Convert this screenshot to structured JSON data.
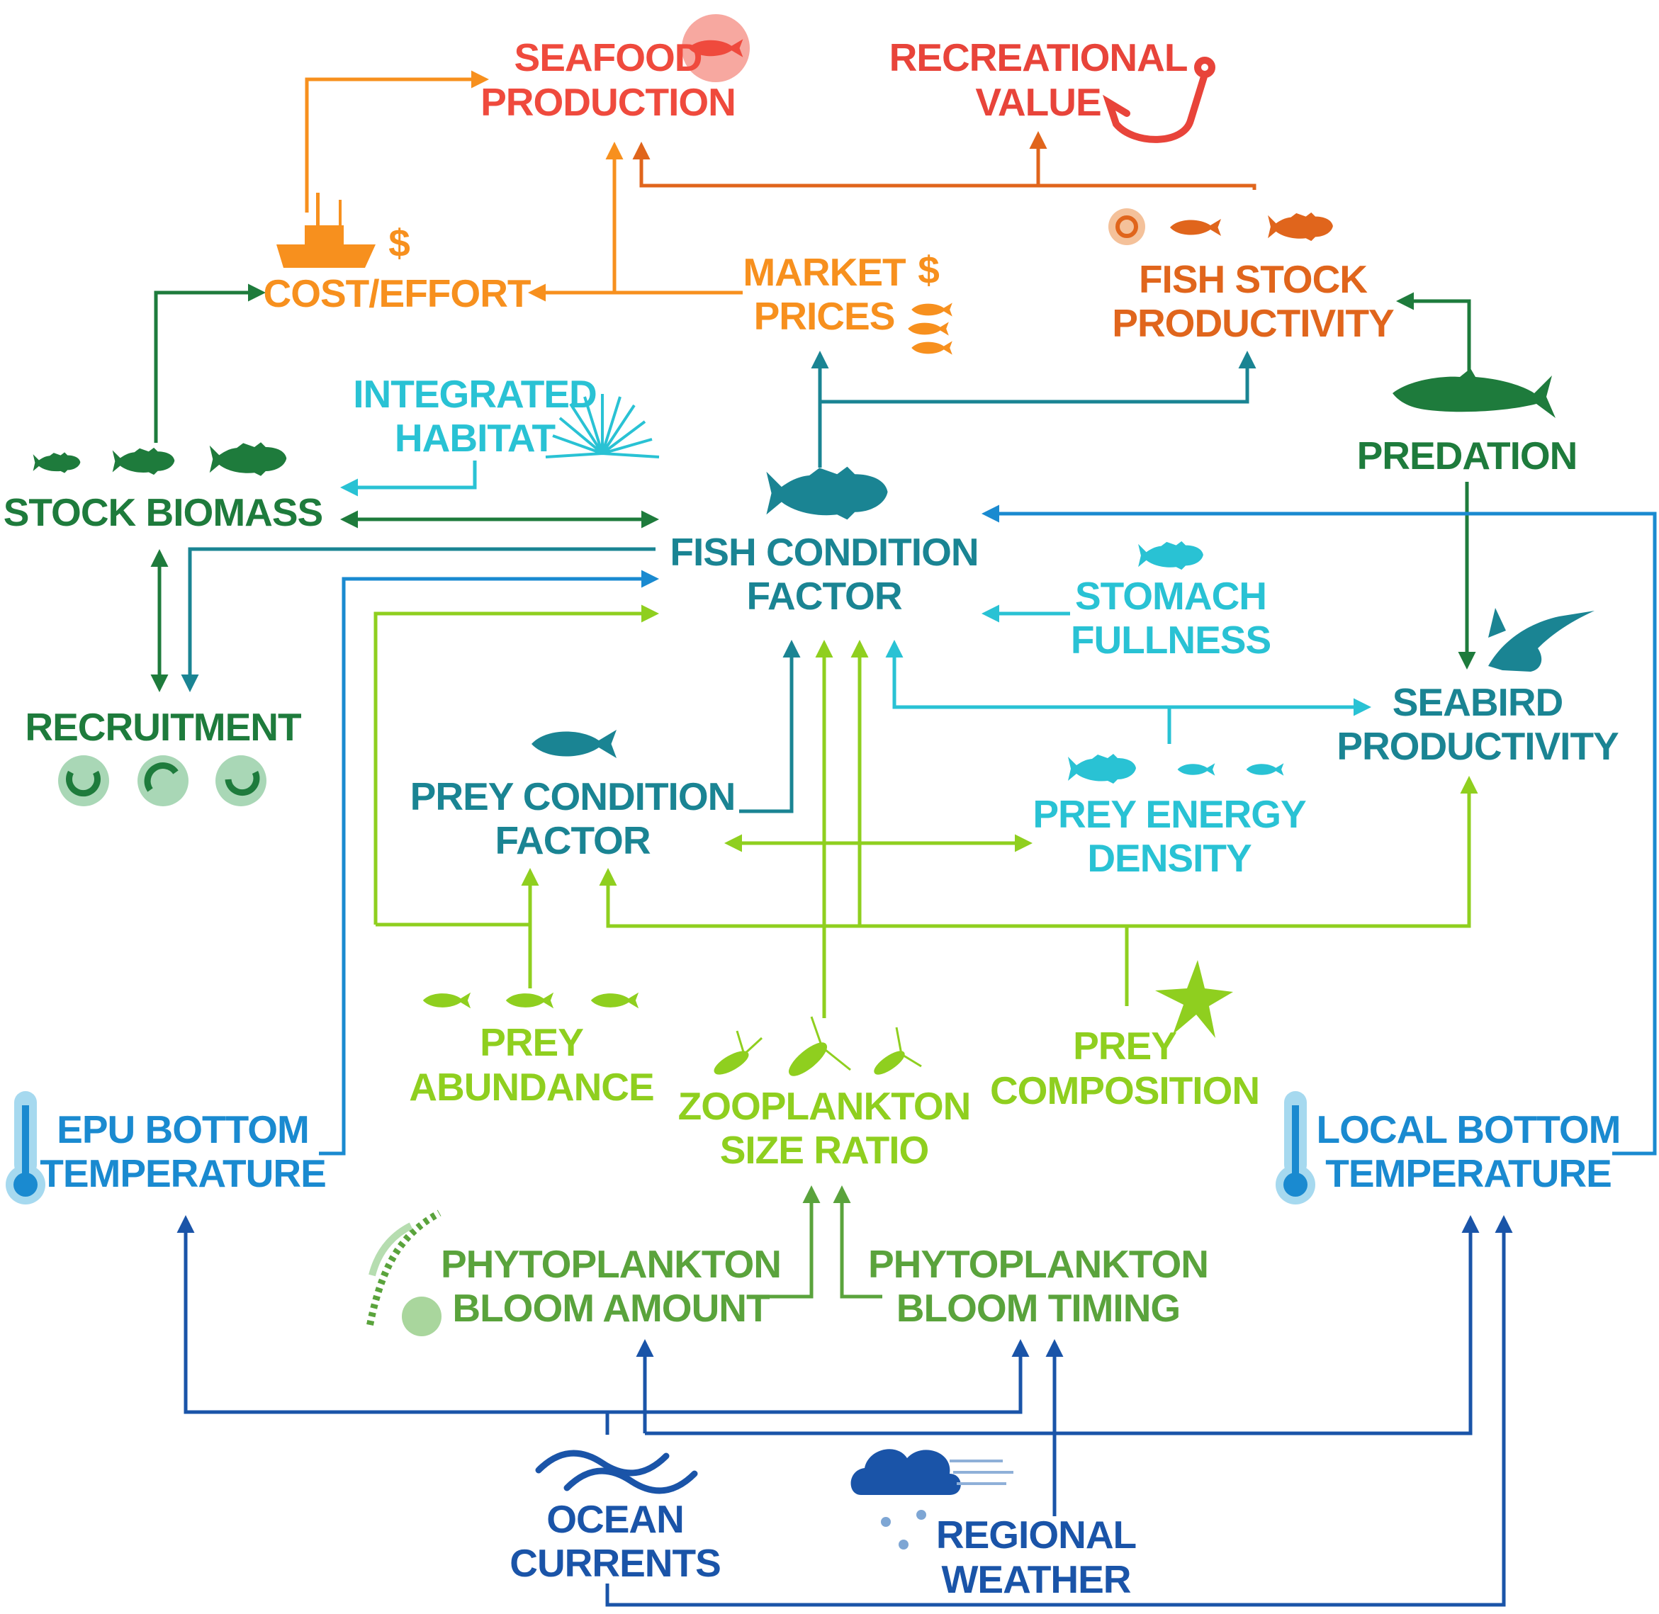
{
  "colors": {
    "socio_red": "#ef4a3d",
    "socio_orange": "#f7901e",
    "fish_orange": "#e0651c",
    "dark_green": "#1e7b3c",
    "teal": "#1a8493",
    "cyan": "#29c2d4",
    "light_green": "#8fcf1f",
    "mid_green": "#5aa33c",
    "blue": "#1a8ad0",
    "navy": "#1a54a8",
    "recreational_red": "#e8443a"
  },
  "nodes": {
    "seafood_production": {
      "line1": "SEAFOOD",
      "line2": "PRODUCTION",
      "icon": "fish-plate-icon"
    },
    "recreational_value": {
      "line1": "RECREATIONAL",
      "line2": "VALUE",
      "icon": "fishhook-icon"
    },
    "cost_effort": {
      "line1": "COST/EFFORT",
      "icon": "fishing-boat-icon"
    },
    "market_prices": {
      "line1": "MARKET",
      "line2": "PRICES",
      "icon": "fish-stack-icon"
    },
    "fish_stock_productivity": {
      "line1": "FISH STOCK",
      "line2": "PRODUCTIVITY",
      "icon": "fish-pair-icon"
    },
    "integrated_habitat": {
      "line1": "INTEGRATED",
      "line2": "HABITAT",
      "icon": "sea-urchin-icon"
    },
    "stock_biomass": {
      "line1": "STOCK BIOMASS",
      "icon": "fish-school-icon"
    },
    "predation": {
      "line1": "PREDATION",
      "icon": "shark-icon"
    },
    "fish_condition_factor": {
      "line1": "FISH CONDITION",
      "line2": "FACTOR",
      "icon": "cod-icon"
    },
    "stomach_fullness": {
      "line1": "STOMACH",
      "line2": "FULLNESS",
      "icon": "small-fish-icon"
    },
    "recruitment": {
      "line1": "RECRUITMENT",
      "icon": "recruitment-cycle-icon"
    },
    "seabird_productivity": {
      "line1": "SEABIRD",
      "line2": "PRODUCTIVITY",
      "icon": "seabird-icon"
    },
    "prey_condition_factor": {
      "line1": "PREY CONDITION",
      "line2": "FACTOR",
      "icon": "herring-icon"
    },
    "prey_energy_density": {
      "line1": "PREY ENERGY",
      "line2": "DENSITY",
      "icon": "prey-fish-icon"
    },
    "prey_abundance": {
      "line1": "PREY",
      "line2": "ABUNDANCE",
      "icon": "prey-school-icon"
    },
    "zooplankton_size_ratio": {
      "line1": "ZOOPLANKTON",
      "line2": "SIZE RATIO",
      "icon": "copepod-icon"
    },
    "prey_composition": {
      "line1": "PREY",
      "line2": "COMPOSITION",
      "icon": "starfish-icon"
    },
    "epu_bottom_temperature": {
      "line1": "EPU BOTTOM",
      "line2": "TEMPERATURE",
      "icon": "thermometer-icon"
    },
    "local_bottom_temperature": {
      "line1": "LOCAL BOTTOM",
      "line2": "TEMPERATURE",
      "icon": "thermometer-icon"
    },
    "phytoplankton_bloom_amount": {
      "line1": "PHYTOPLANKTON",
      "line2": "BLOOM AMOUNT",
      "icon": "phytoplankton-icon"
    },
    "phytoplankton_bloom_timing": {
      "line1": "PHYTOPLANKTON",
      "line2": "BLOOM TIMING"
    },
    "ocean_currents": {
      "line1": "OCEAN",
      "line2": "CURRENTS",
      "icon": "waves-icon"
    },
    "regional_weather": {
      "line1": "REGIONAL",
      "line2": "WEATHER",
      "icon": "rain-cloud-icon"
    }
  },
  "symbols": {
    "dollar": "$"
  }
}
